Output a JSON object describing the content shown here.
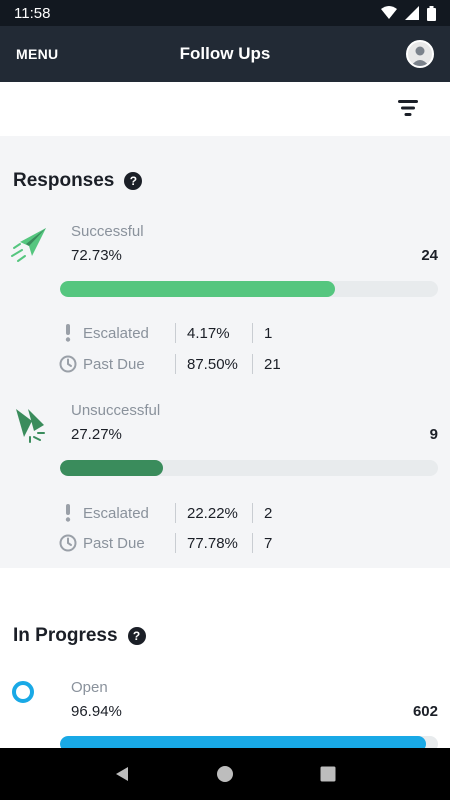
{
  "status_bar": {
    "time": "11:58"
  },
  "app_bar": {
    "menu_label": "MENU",
    "title": "Follow Ups"
  },
  "responses": {
    "title": "Responses",
    "help": "?",
    "successful": {
      "label": "Successful",
      "percent": "72.73%",
      "count": "24",
      "fill_fraction": 0.7273,
      "color": "#55c67f",
      "escalated": {
        "label": "Escalated",
        "percent": "4.17%",
        "count": "1"
      },
      "past_due": {
        "label": "Past Due",
        "percent": "87.50%",
        "count": "21"
      }
    },
    "unsuccessful": {
      "label": "Unsuccessful",
      "percent": "27.27%",
      "count": "9",
      "fill_fraction": 0.2727,
      "color": "#3a8c5c",
      "escalated": {
        "label": "Escalated",
        "percent": "22.22%",
        "count": "2"
      },
      "past_due": {
        "label": "Past Due",
        "percent": "77.78%",
        "count": "7"
      }
    }
  },
  "in_progress": {
    "title": "In Progress",
    "help": "?",
    "open": {
      "label": "Open",
      "percent": "96.94%",
      "count": "602",
      "fill_fraction": 0.9694,
      "color": "#19a9e6"
    }
  },
  "icons": [
    "menu",
    "avatar-icon",
    "filter-icon",
    "help-icon",
    "paper-plane-icon",
    "broken-plane-icon",
    "alert-icon",
    "clock-icon",
    "open-circle-icon",
    "back-icon",
    "home-icon",
    "recents-icon"
  ]
}
